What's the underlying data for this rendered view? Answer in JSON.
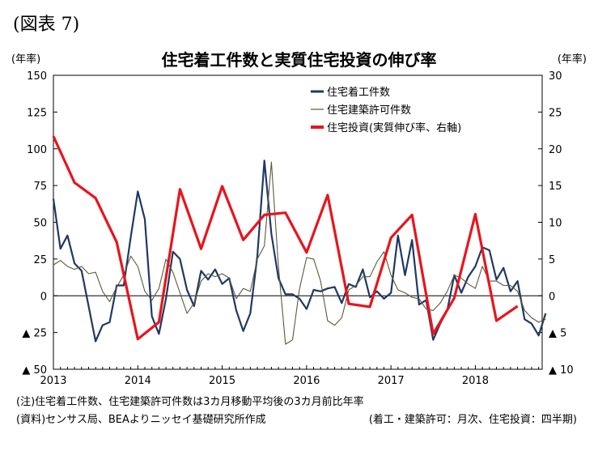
{
  "figure_label": "(図表 7)",
  "unit_left": "(年率)",
  "unit_right": "(年率)",
  "notes": {
    "note1": "(注)住宅着工件数、住宅建築許可件数は3カ月移動平均後の3カ月前比年率",
    "note2": "(資料)センサス局、BEAよりニッセイ基礎研究所作成",
    "frequency": "(着工・建築許可：月次、住宅投資：四半期)"
  },
  "colors": {
    "starts": "#1f3864",
    "permits": "#5a5a3a",
    "investment": "#e8141c"
  },
  "chart_data": {
    "type": "line",
    "title": "住宅着工件数と実質住宅投資の伸び率",
    "legend_position": "top-right",
    "grid": false,
    "x_ticks": [
      "2013",
      "2014",
      "2015",
      "2016",
      "2017",
      "2018"
    ],
    "y_left": {
      "lim": [
        -50,
        150
      ],
      "ticks": [
        {
          "v": 150,
          "label": "150"
        },
        {
          "v": 125,
          "label": "125"
        },
        {
          "v": 100,
          "label": "100"
        },
        {
          "v": 75,
          "label": "75"
        },
        {
          "v": 50,
          "label": "50"
        },
        {
          "v": 25,
          "label": "25"
        },
        {
          "v": 0,
          "label": "0"
        },
        {
          "v": -25,
          "label": "▲ 25"
        },
        {
          "v": -50,
          "label": "▲ 50"
        }
      ]
    },
    "y_right": {
      "lim": [
        -10,
        30
      ],
      "ticks": [
        {
          "v": 30,
          "label": "30"
        },
        {
          "v": 25,
          "label": "25"
        },
        {
          "v": 20,
          "label": "20"
        },
        {
          "v": 15,
          "label": "15"
        },
        {
          "v": 10,
          "label": "10"
        },
        {
          "v": 5,
          "label": "5"
        },
        {
          "v": 0,
          "label": "0"
        },
        {
          "v": -5,
          "label": "▲ 5"
        },
        {
          "v": -10,
          "label": "▲ 10"
        }
      ]
    },
    "series": [
      {
        "name": "住宅着工件数",
        "axis": "left",
        "start_year": 2013,
        "step_months": 1,
        "values": [
          66,
          32,
          41,
          22,
          17,
          -7,
          -31,
          -20,
          -18,
          7,
          7,
          40,
          71,
          52,
          -14,
          -26,
          -2,
          30,
          25,
          4,
          -7,
          17,
          11,
          18,
          8,
          12,
          -10,
          -24,
          -12,
          27,
          92,
          42,
          12,
          1,
          1,
          -2,
          -9,
          4,
          3,
          5,
          6,
          -5,
          8,
          6,
          18,
          -1,
          3,
          -2,
          2,
          41,
          14,
          38,
          -6,
          -3,
          -30,
          -19,
          -10,
          14,
          2,
          13,
          20,
          33,
          31,
          11,
          19,
          3,
          10,
          -16,
          -19,
          -27,
          -12
        ]
      },
      {
        "name": "住宅建築許可件数",
        "axis": "left",
        "start_year": 2013,
        "step_months": 1,
        "values": [
          21,
          24,
          20,
          18,
          20,
          15,
          16,
          3,
          -4,
          6,
          14,
          27,
          20,
          3,
          -3,
          5,
          25,
          16,
          2,
          -12,
          -5,
          10,
          15,
          13,
          15,
          12,
          -2,
          5,
          3,
          25,
          34,
          91,
          20,
          -33,
          -30,
          5,
          26,
          25,
          10,
          -17,
          -20,
          -15,
          4,
          7,
          13,
          13,
          23,
          30,
          14,
          4,
          2,
          -1,
          -2,
          -9,
          -10,
          -5,
          3,
          14,
          12,
          8,
          5,
          20,
          10,
          10,
          7,
          7,
          3,
          -10,
          -15,
          -18,
          -16
        ]
      },
      {
        "name": "住宅投資(実質伸び率、右軸)",
        "axis": "right",
        "start_year": 2013,
        "step_months": 3,
        "values": [
          21.7,
          15.4,
          13.3,
          7.3,
          -5.9,
          -3.6,
          14.5,
          6.4,
          14.9,
          7.6,
          11.0,
          11.3,
          5.9,
          13.7,
          -1.1,
          -1.5,
          7.9,
          11.0,
          -5.2,
          -0.3,
          11.1,
          -3.4,
          -1.4
        ]
      }
    ]
  }
}
